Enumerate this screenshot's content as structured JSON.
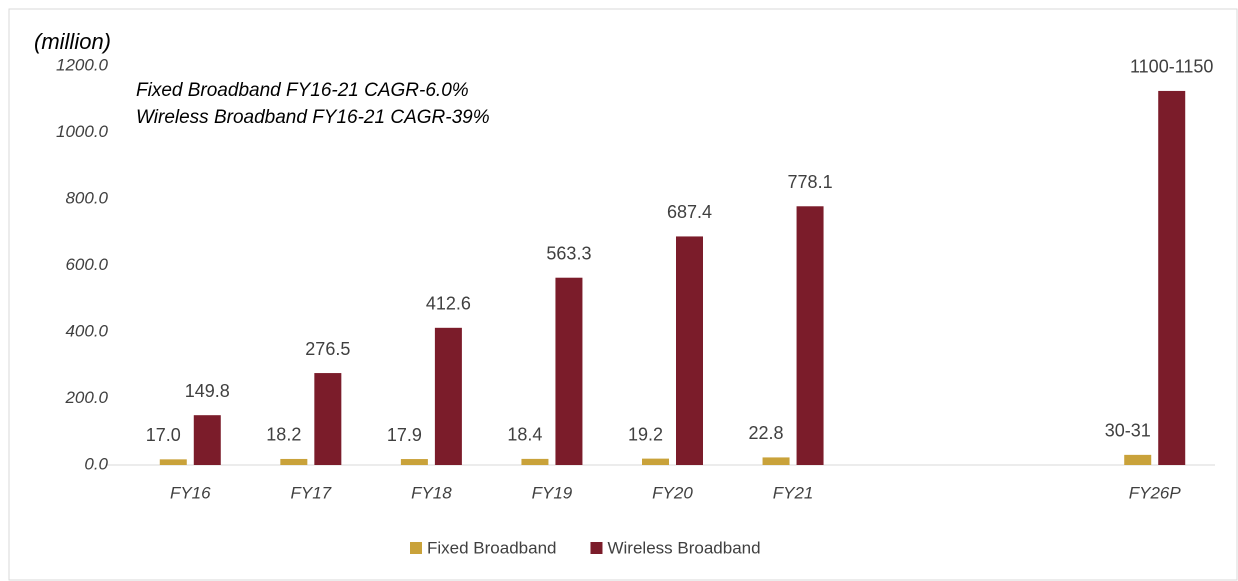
{
  "chart_data": {
    "type": "bar",
    "annotations": [
      "(million)",
      "Fixed Broadband FY16-21 CAGR-6.0%",
      "Wireless Broadband FY16-21 CAGR-39%"
    ],
    "categories": [
      "FY16",
      "FY17",
      "FY18",
      "FY19",
      "FY20",
      "FY21",
      null,
      null,
      "FY26P"
    ],
    "series": [
      {
        "name": "Fixed Broadband",
        "color": "#c9a23a",
        "values": [
          17.0,
          18.2,
          17.9,
          18.4,
          19.2,
          22.8,
          null,
          null,
          30.5
        ],
        "value_labels": [
          "17.0",
          "18.2",
          "17.9",
          "18.4",
          "19.2",
          "22.8",
          null,
          null,
          "30-31"
        ]
      },
      {
        "name": "Wireless Broadband",
        "color": "#7b1c2a",
        "values": [
          149.8,
          276.5,
          412.6,
          563.3,
          687.4,
          778.1,
          null,
          null,
          1125
        ],
        "value_labels": [
          "149.8",
          "276.5",
          "412.6",
          "563.3",
          "687.4",
          "778.1",
          null,
          null,
          "1100-1150"
        ]
      }
    ],
    "ylim": [
      0,
      1200
    ],
    "yticks": [
      {
        "value": 0,
        "label": "0.0"
      },
      {
        "value": 200,
        "label": "200.0"
      },
      {
        "value": 400,
        "label": "400.0"
      },
      {
        "value": 600,
        "label": "600.0"
      },
      {
        "value": 800,
        "label": "800.0"
      },
      {
        "value": 1000,
        "label": "1000.0"
      },
      {
        "value": 1200,
        "label": "1200.0"
      }
    ],
    "grid": false,
    "legend": "bottom"
  }
}
